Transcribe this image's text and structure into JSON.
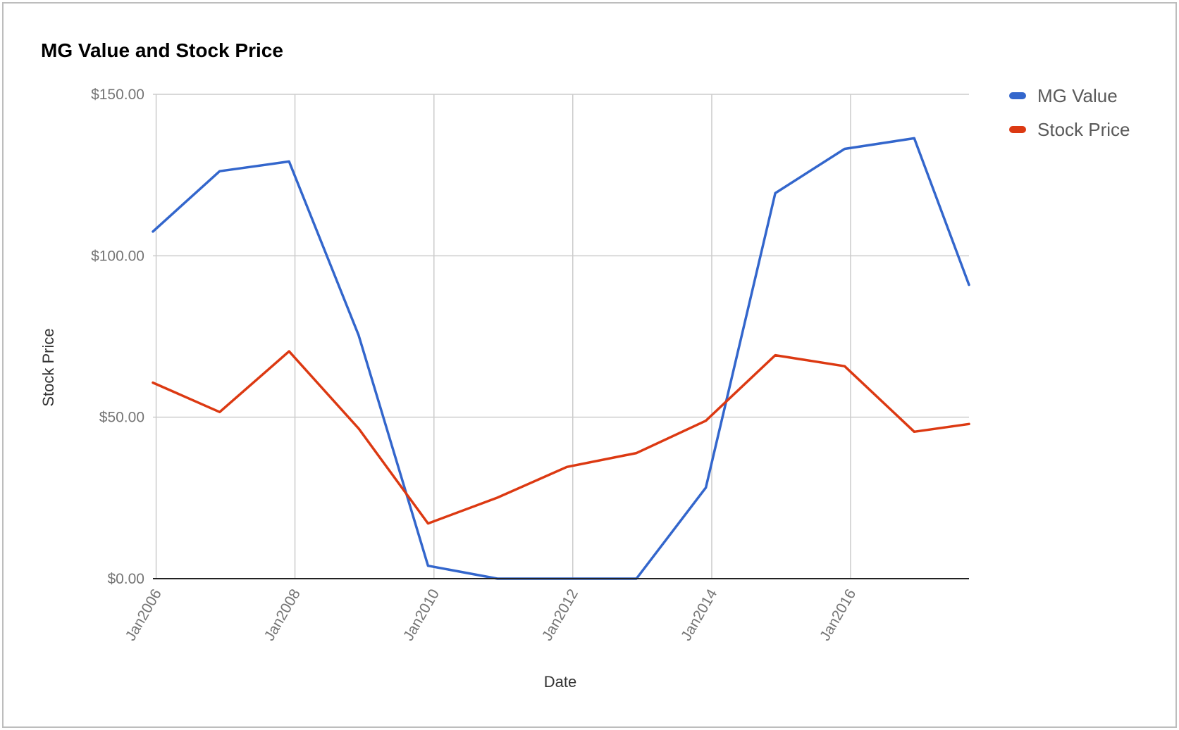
{
  "chart_data": {
    "type": "line",
    "title": "MG Value and Stock Price",
    "xlabel": "Date",
    "ylabel": "Stock Price",
    "x_range": [
      "2005-12-15",
      "2017-09-15"
    ],
    "x_ticks": [
      {
        "date": "2006-01-01",
        "label": "Jan2006"
      },
      {
        "date": "2008-01-01",
        "label": "Jan2008"
      },
      {
        "date": "2010-01-01",
        "label": "Jan2010"
      },
      {
        "date": "2012-01-01",
        "label": "Jan2012"
      },
      {
        "date": "2014-01-01",
        "label": "Jan2014"
      },
      {
        "date": "2016-01-01",
        "label": "Jan2016"
      }
    ],
    "ylim": [
      0,
      150
    ],
    "y_ticks": [
      {
        "value": 0,
        "label": "$0.00"
      },
      {
        "value": 50,
        "label": "$50.00"
      },
      {
        "value": 100,
        "label": "$100.00"
      },
      {
        "value": 150,
        "label": "$150.00"
      }
    ],
    "grid": true,
    "legend_position": "top-right",
    "series": [
      {
        "name": "MG Value",
        "color": "#3366cc",
        "points": [
          {
            "x": "2005-12-15",
            "y": 107.5
          },
          {
            "x": "2006-12-01",
            "y": 126.2
          },
          {
            "x": "2007-12-01",
            "y": 129.2
          },
          {
            "x": "2008-12-01",
            "y": 75.4
          },
          {
            "x": "2009-12-01",
            "y": 4.0
          },
          {
            "x": "2010-12-01",
            "y": 0
          },
          {
            "x": "2011-12-01",
            "y": 0
          },
          {
            "x": "2012-12-01",
            "y": 0
          },
          {
            "x": "2013-12-01",
            "y": 28.2
          },
          {
            "x": "2014-12-01",
            "y": 119.4
          },
          {
            "x": "2015-12-01",
            "y": 133.1
          },
          {
            "x": "2016-12-01",
            "y": 136.4
          },
          {
            "x": "2017-09-15",
            "y": 91.0
          }
        ]
      },
      {
        "name": "Stock Price",
        "color": "#dc3912",
        "points": [
          {
            "x": "2005-12-15",
            "y": 60.7
          },
          {
            "x": "2006-12-01",
            "y": 51.6
          },
          {
            "x": "2007-12-01",
            "y": 70.4
          },
          {
            "x": "2008-12-01",
            "y": 46.5
          },
          {
            "x": "2009-12-01",
            "y": 17.1
          },
          {
            "x": "2010-12-01",
            "y": 25.1
          },
          {
            "x": "2011-12-01",
            "y": 34.6
          },
          {
            "x": "2012-12-01",
            "y": 38.9
          },
          {
            "x": "2013-12-01",
            "y": 48.9
          },
          {
            "x": "2014-12-01",
            "y": 69.2
          },
          {
            "x": "2015-12-01",
            "y": 65.8
          },
          {
            "x": "2016-12-01",
            "y": 45.5
          },
          {
            "x": "2017-09-15",
            "y": 47.9
          }
        ]
      }
    ]
  }
}
